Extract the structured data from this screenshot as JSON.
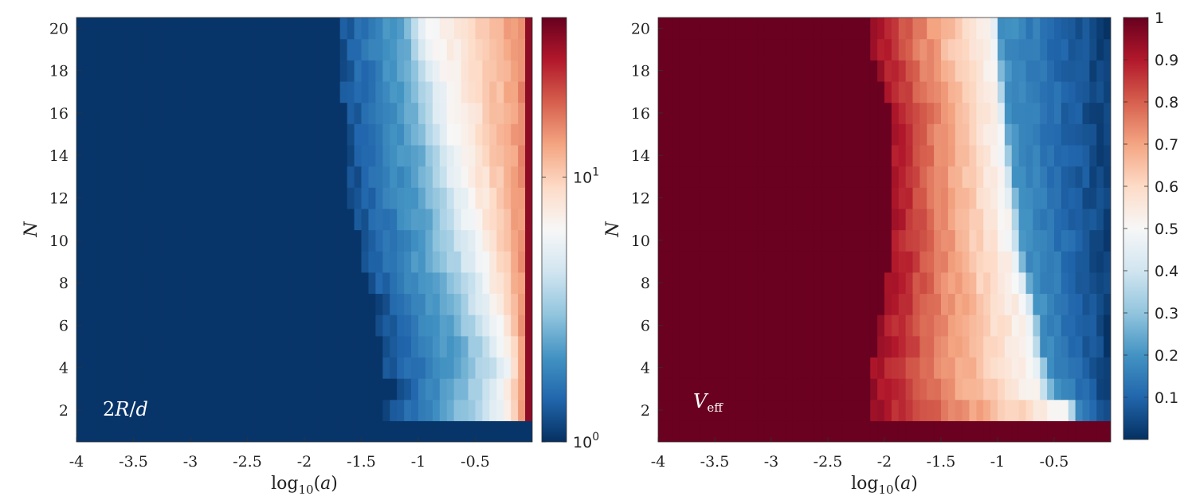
{
  "chart_data": [
    {
      "type": "heatmap",
      "panel": "left",
      "annotation": "2R/d",
      "xlabel": "log10(a)",
      "ylabel": "N",
      "xlim": [
        -4,
        0
      ],
      "ylim": [
        1,
        20
      ],
      "x_ticks": [
        "-4",
        "-3.5",
        "-3",
        "-2.5",
        "-2",
        "-1.5",
        "-1",
        "-0.5"
      ],
      "y_ticks": [
        "2",
        "4",
        "6",
        "8",
        "10",
        "12",
        "14",
        "16",
        "18",
        "20"
      ],
      "colorbar": {
        "scale": "log",
        "range": [
          1,
          40
        ],
        "ticks": [
          {
            "value": 1,
            "base": "10",
            "exp": "0"
          },
          {
            "value": 10,
            "base": "10",
            "exp": "1"
          }
        ]
      },
      "rows": [
        {
          "N": 1,
          "onset": null,
          "mid": null,
          "light": null,
          "end": null
        },
        {
          "N": 2,
          "onset": -1.3,
          "mid": -0.7,
          "light": -0.3,
          "end": -0.05
        },
        {
          "N": 3,
          "onset": -1.2,
          "mid": -0.65,
          "light": -0.3,
          "end": -0.05
        },
        {
          "N": 4,
          "onset": -1.3,
          "mid": -0.6,
          "light": -0.25,
          "end": -0.05
        },
        {
          "N": 5,
          "onset": -1.3,
          "mid": -0.62,
          "light": -0.3,
          "end": -0.05
        },
        {
          "N": 6,
          "onset": -1.35,
          "mid": -0.68,
          "light": -0.35,
          "end": -0.05
        },
        {
          "N": 7,
          "onset": -1.35,
          "mid": -0.75,
          "light": -0.4,
          "end": -0.05
        },
        {
          "N": 8,
          "onset": -1.45,
          "mid": -0.8,
          "light": -0.45,
          "end": -0.05
        },
        {
          "N": 9,
          "onset": -1.5,
          "mid": -0.85,
          "light": -0.5,
          "end": -0.05
        },
        {
          "N": 10,
          "onset": -1.5,
          "mid": -0.88,
          "light": -0.55,
          "end": -0.05
        },
        {
          "N": 11,
          "onset": -1.55,
          "mid": -0.9,
          "light": -0.6,
          "end": -0.05
        },
        {
          "N": 12,
          "onset": -1.6,
          "mid": -0.92,
          "light": -0.65,
          "end": -0.05
        },
        {
          "N": 13,
          "onset": -1.6,
          "mid": -0.95,
          "light": -0.7,
          "end": -0.05
        },
        {
          "N": 14,
          "onset": -1.6,
          "mid": -0.97,
          "light": -0.75,
          "end": -0.05
        },
        {
          "N": 15,
          "onset": -1.65,
          "mid": -1.0,
          "light": -0.8,
          "end": -0.05
        },
        {
          "N": 16,
          "onset": -1.65,
          "mid": -1.02,
          "light": -0.82,
          "end": -0.05
        },
        {
          "N": 17,
          "onset": -1.7,
          "mid": -1.04,
          "light": -0.85,
          "end": -0.05
        },
        {
          "N": 18,
          "onset": -1.7,
          "mid": -1.06,
          "light": -0.9,
          "end": -0.05
        },
        {
          "N": 19,
          "onset": -1.7,
          "mid": -1.08,
          "light": -0.95,
          "end": -0.05
        },
        {
          "N": 20,
          "onset": -1.7,
          "mid": -1.1,
          "light": -1.0,
          "end": -0.05
        }
      ]
    },
    {
      "type": "heatmap",
      "panel": "right",
      "annotation": "Veff",
      "xlabel": "log10(a)",
      "ylabel": "N",
      "xlim": [
        -4,
        0
      ],
      "ylim": [
        1,
        20
      ],
      "x_ticks": [
        "-4",
        "-3.5",
        "-3",
        "-2.5",
        "-2",
        "-1.5",
        "-1",
        "-0.5"
      ],
      "y_ticks": [
        "2",
        "4",
        "6",
        "8",
        "10",
        "12",
        "14",
        "16",
        "18",
        "20"
      ],
      "colorbar": {
        "range": [
          0,
          1
        ],
        "ticks": [
          "0.1",
          "0.2",
          "0.3",
          "0.4",
          "0.5",
          "0.6",
          "0.7",
          "0.8",
          "0.9",
          "1"
        ]
      },
      "rows": [
        {
          "N": 1,
          "start": null,
          "cross": null,
          "end": null
        },
        {
          "N": 2,
          "start": -2.1,
          "cross": -0.4,
          "end": -0.3
        },
        {
          "N": 3,
          "start": -2.1,
          "cross": -0.65,
          "end": -0.5
        },
        {
          "N": 4,
          "start": -2.1,
          "cross": -0.68,
          "end": -0.55
        },
        {
          "N": 5,
          "start": -2.05,
          "cross": -0.7,
          "end": -0.6
        },
        {
          "N": 6,
          "start": -2.05,
          "cross": -0.72,
          "end": -0.62
        },
        {
          "N": 7,
          "start": -2.0,
          "cross": -0.75,
          "end": -0.65
        },
        {
          "N": 8,
          "start": -2.0,
          "cross": -0.8,
          "end": -0.7
        },
        {
          "N": 9,
          "start": -1.95,
          "cross": -0.85,
          "end": -0.75
        },
        {
          "N": 10,
          "start": -1.95,
          "cross": -0.88,
          "end": -0.78
        },
        {
          "N": 11,
          "start": -1.95,
          "cross": -0.9,
          "end": -0.8
        },
        {
          "N": 12,
          "start": -1.95,
          "cross": -0.92,
          "end": -0.82
        },
        {
          "N": 13,
          "start": -1.95,
          "cross": -0.94,
          "end": -0.85
        },
        {
          "N": 14,
          "start": -1.95,
          "cross": -0.95,
          "end": -0.87
        },
        {
          "N": 15,
          "start": -1.95,
          "cross": -0.97,
          "end": -0.9
        },
        {
          "N": 16,
          "start": -1.95,
          "cross": -0.98,
          "end": -0.92
        },
        {
          "N": 17,
          "start": -2.0,
          "cross": -1.0,
          "end": -0.93
        },
        {
          "N": 18,
          "start": -2.05,
          "cross": -1.02,
          "end": -0.95
        },
        {
          "N": 19,
          "start": -2.1,
          "cross": -1.04,
          "end": -0.96
        },
        {
          "N": 20,
          "start": -2.1,
          "cross": -1.05,
          "end": -0.97
        }
      ]
    }
  ],
  "colors": {
    "colormap": [
      "#053061",
      "#2166ac",
      "#4393c3",
      "#92c5de",
      "#d1e5f0",
      "#f7f7f7",
      "#fddbc7",
      "#f4a582",
      "#d6604d",
      "#b2182b",
      "#67001f"
    ]
  }
}
